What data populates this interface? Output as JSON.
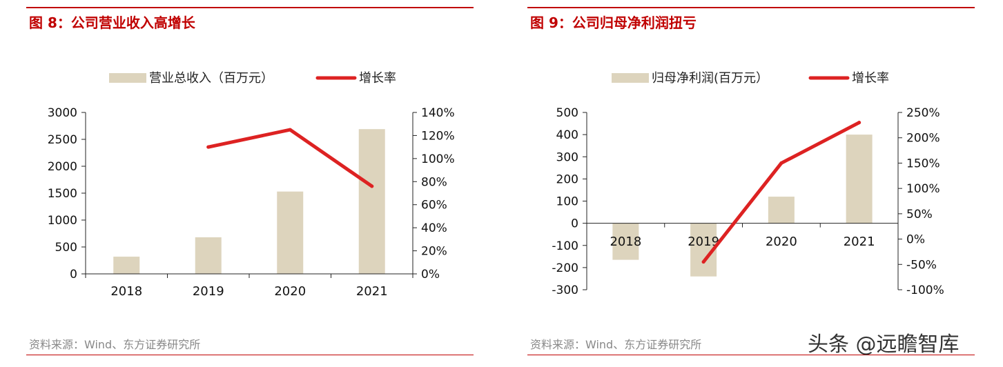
{
  "charts": [
    {
      "title": "图 8：公司营业收入高增长",
      "source": "资料来源：Wind、东方证券研究所",
      "legend": [
        "营业总收入（百万元）",
        "增长率"
      ]
    },
    {
      "title": "图 9：公司归母净利润扭亏",
      "source": "资料来源：Wind、东方证券研究所",
      "legend": [
        "归母净利润(百万元）",
        "增长率"
      ]
    }
  ],
  "watermark": "头条 @远瞻智库",
  "colors": {
    "bar": "#ddd4bd",
    "line": "#dd2222",
    "accent": "#c00000"
  },
  "chart_data": [
    {
      "type": "bar",
      "title": "图 8：公司营业收入高增长",
      "categories": [
        "2018",
        "2019",
        "2020",
        "2021"
      ],
      "series": [
        {
          "name": "营业总收入（百万元）",
          "type": "bar",
          "axis": "left",
          "values": [
            320,
            680,
            1530,
            2690
          ]
        },
        {
          "name": "增长率",
          "type": "line",
          "axis": "right",
          "values": [
            null,
            110,
            125,
            76
          ]
        }
      ],
      "ylim": [
        0,
        3000
      ],
      "yticks": [
        "0",
        "500",
        "1000",
        "1500",
        "2000",
        "2500",
        "3000"
      ],
      "y2lim": [
        0,
        140
      ],
      "y2ticks": [
        "0%",
        "20%",
        "40%",
        "60%",
        "80%",
        "100%",
        "120%",
        "140%"
      ],
      "grid": false,
      "legend_position": "top"
    },
    {
      "type": "bar",
      "title": "图 9：公司归母净利润扭亏",
      "categories": [
        "2018",
        "2019",
        "2020",
        "2021"
      ],
      "series": [
        {
          "name": "归母净利润(百万元）",
          "type": "bar",
          "axis": "left",
          "values": [
            -165,
            -240,
            120,
            400
          ]
        },
        {
          "name": "增长率",
          "type": "line",
          "axis": "right",
          "values": [
            null,
            -45,
            150,
            230
          ]
        }
      ],
      "ylim": [
        -300,
        500
      ],
      "yticks": [
        "-300",
        "-200",
        "-100",
        "0",
        "100",
        "200",
        "300",
        "400",
        "500"
      ],
      "y2lim": [
        -100,
        250
      ],
      "y2ticks": [
        "-100%",
        "-50%",
        "0%",
        "50%",
        "100%",
        "150%",
        "200%",
        "250%"
      ],
      "grid": false,
      "legend_position": "top"
    }
  ]
}
